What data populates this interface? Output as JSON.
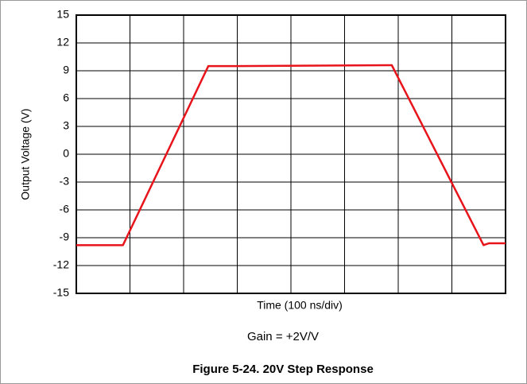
{
  "chart_data": {
    "type": "line",
    "xlabel": "Time (100 ns/div)",
    "ylabel": "Output Voltage (V)",
    "annotation": "Gain = +2V/V",
    "caption": "Figure 5-24. 20V Step Response",
    "x": [
      0,
      87,
      246,
      300,
      584,
      588,
      759,
      769,
      800
    ],
    "values": [
      -9.8,
      -9.8,
      9.5,
      9.5,
      9.6,
      9.6,
      -9.8,
      -9.6,
      -9.6
    ],
    "color": "#e8141b",
    "xlim": [
      0,
      800
    ],
    "xticks": [
      0,
      100,
      200,
      300,
      400,
      500,
      600,
      700,
      800
    ],
    "ylim": [
      -15,
      15
    ],
    "yticks": [
      15,
      12,
      9,
      6,
      3,
      0,
      -3,
      -6,
      -9,
      -12,
      -15
    ],
    "grid": true
  }
}
